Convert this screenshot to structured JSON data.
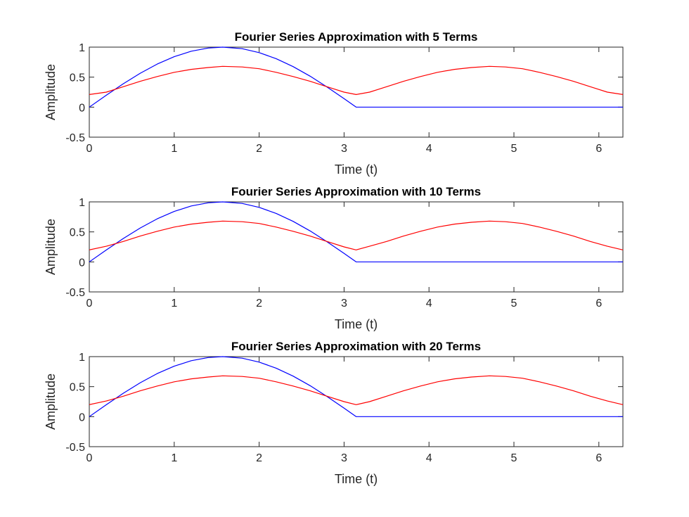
{
  "chart_data": [
    {
      "type": "line",
      "title": "Fourier Series Approximation with 5 Terms",
      "xlabel": "Time (t)",
      "ylabel": "Amplitude",
      "xlim": [
        0,
        6.2832
      ],
      "ylim": [
        -0.5,
        1
      ],
      "xticks": [
        0,
        1,
        2,
        3,
        4,
        5,
        6
      ],
      "xtick_labels": [
        "0",
        "1",
        "2",
        "3",
        "4",
        "5",
        "6"
      ],
      "yticks": [
        -0.5,
        0,
        0.5,
        1
      ],
      "ytick_labels": [
        "-0.5",
        "0",
        "0.5",
        "1"
      ],
      "grid": false,
      "series": [
        {
          "color": "#0000ff",
          "x": [
            0,
            0.2,
            0.4,
            0.6,
            0.8,
            1.0,
            1.2,
            1.4,
            1.5708,
            1.8,
            2.0,
            2.2,
            2.4,
            2.6,
            2.8,
            3.0,
            3.1416,
            3.3,
            4.0,
            5.0,
            6.0,
            6.2832
          ],
          "y": [
            0,
            0.199,
            0.389,
            0.565,
            0.717,
            0.841,
            0.932,
            0.985,
            1.0,
            0.974,
            0.909,
            0.808,
            0.675,
            0.516,
            0.335,
            0.141,
            0,
            0,
            0,
            0,
            0,
            0
          ]
        },
        {
          "color": "#ff0000",
          "x": [
            0,
            0.2,
            0.4,
            0.6,
            0.8,
            1.0,
            1.2,
            1.4,
            1.5708,
            1.8,
            2.0,
            2.2,
            2.4,
            2.6,
            2.8,
            3.0,
            3.1416,
            3.3,
            3.5,
            3.7,
            3.9,
            4.1,
            4.3,
            4.5,
            4.7124,
            4.9,
            5.1,
            5.3,
            5.5,
            5.7,
            5.9,
            6.1,
            6.2832
          ],
          "y": [
            0.21,
            0.25,
            0.34,
            0.43,
            0.51,
            0.58,
            0.63,
            0.66,
            0.68,
            0.67,
            0.64,
            0.58,
            0.51,
            0.43,
            0.34,
            0.25,
            0.21,
            0.25,
            0.34,
            0.43,
            0.51,
            0.58,
            0.63,
            0.66,
            0.68,
            0.67,
            0.64,
            0.58,
            0.51,
            0.43,
            0.34,
            0.25,
            0.21
          ]
        }
      ]
    },
    {
      "type": "line",
      "title": "Fourier Series Approximation with 10 Terms",
      "xlabel": "Time (t)",
      "ylabel": "Amplitude",
      "xlim": [
        0,
        6.2832
      ],
      "ylim": [
        -0.5,
        1
      ],
      "xticks": [
        0,
        1,
        2,
        3,
        4,
        5,
        6
      ],
      "xtick_labels": [
        "0",
        "1",
        "2",
        "3",
        "4",
        "5",
        "6"
      ],
      "yticks": [
        -0.5,
        0,
        0.5,
        1
      ],
      "ytick_labels": [
        "-0.5",
        "0",
        "0.5",
        "1"
      ],
      "grid": false,
      "series": [
        {
          "color": "#0000ff",
          "x": [
            0,
            0.2,
            0.4,
            0.6,
            0.8,
            1.0,
            1.2,
            1.4,
            1.5708,
            1.8,
            2.0,
            2.2,
            2.4,
            2.6,
            2.8,
            3.0,
            3.1416,
            3.3,
            4.0,
            5.0,
            6.0,
            6.2832
          ],
          "y": [
            0,
            0.199,
            0.389,
            0.565,
            0.717,
            0.841,
            0.932,
            0.985,
            1.0,
            0.974,
            0.909,
            0.808,
            0.675,
            0.516,
            0.335,
            0.141,
            0,
            0,
            0,
            0,
            0,
            0
          ]
        },
        {
          "color": "#ff0000",
          "x": [
            0,
            0.2,
            0.4,
            0.6,
            0.8,
            1.0,
            1.2,
            1.4,
            1.5708,
            1.8,
            2.0,
            2.2,
            2.4,
            2.6,
            2.8,
            3.0,
            3.1416,
            3.3,
            3.5,
            3.7,
            3.9,
            4.1,
            4.3,
            4.5,
            4.7124,
            4.9,
            5.1,
            5.3,
            5.5,
            5.7,
            5.9,
            6.1,
            6.2832
          ],
          "y": [
            0.2,
            0.26,
            0.34,
            0.43,
            0.51,
            0.58,
            0.63,
            0.66,
            0.68,
            0.67,
            0.64,
            0.58,
            0.51,
            0.43,
            0.34,
            0.25,
            0.2,
            0.26,
            0.34,
            0.43,
            0.51,
            0.58,
            0.63,
            0.66,
            0.68,
            0.67,
            0.64,
            0.58,
            0.51,
            0.43,
            0.34,
            0.26,
            0.2
          ]
        }
      ]
    },
    {
      "type": "line",
      "title": "Fourier Series Approximation with 20 Terms",
      "xlabel": "Time (t)",
      "ylabel": "Amplitude",
      "xlim": [
        0,
        6.2832
      ],
      "ylim": [
        -0.5,
        1
      ],
      "xticks": [
        0,
        1,
        2,
        3,
        4,
        5,
        6
      ],
      "xtick_labels": [
        "0",
        "1",
        "2",
        "3",
        "4",
        "5",
        "6"
      ],
      "yticks": [
        -0.5,
        0,
        0.5,
        1
      ],
      "ytick_labels": [
        "-0.5",
        "0",
        "0.5",
        "1"
      ],
      "grid": false,
      "series": [
        {
          "color": "#0000ff",
          "x": [
            0,
            0.2,
            0.4,
            0.6,
            0.8,
            1.0,
            1.2,
            1.4,
            1.5708,
            1.8,
            2.0,
            2.2,
            2.4,
            2.6,
            2.8,
            3.0,
            3.1416,
            3.3,
            4.0,
            5.0,
            6.0,
            6.2832
          ],
          "y": [
            0,
            0.199,
            0.389,
            0.565,
            0.717,
            0.841,
            0.932,
            0.985,
            1.0,
            0.974,
            0.909,
            0.808,
            0.675,
            0.516,
            0.335,
            0.141,
            0,
            0,
            0,
            0,
            0,
            0
          ]
        },
        {
          "color": "#ff0000",
          "x": [
            0,
            0.2,
            0.4,
            0.6,
            0.8,
            1.0,
            1.2,
            1.4,
            1.5708,
            1.8,
            2.0,
            2.2,
            2.4,
            2.6,
            2.8,
            3.0,
            3.1416,
            3.3,
            3.5,
            3.7,
            3.9,
            4.1,
            4.3,
            4.5,
            4.7124,
            4.9,
            5.1,
            5.3,
            5.5,
            5.7,
            5.9,
            6.1,
            6.2832
          ],
          "y": [
            0.2,
            0.26,
            0.34,
            0.43,
            0.51,
            0.58,
            0.63,
            0.66,
            0.68,
            0.67,
            0.64,
            0.58,
            0.51,
            0.43,
            0.34,
            0.25,
            0.2,
            0.25,
            0.34,
            0.43,
            0.51,
            0.58,
            0.63,
            0.66,
            0.68,
            0.67,
            0.64,
            0.58,
            0.51,
            0.43,
            0.34,
            0.26,
            0.2
          ]
        }
      ]
    }
  ]
}
